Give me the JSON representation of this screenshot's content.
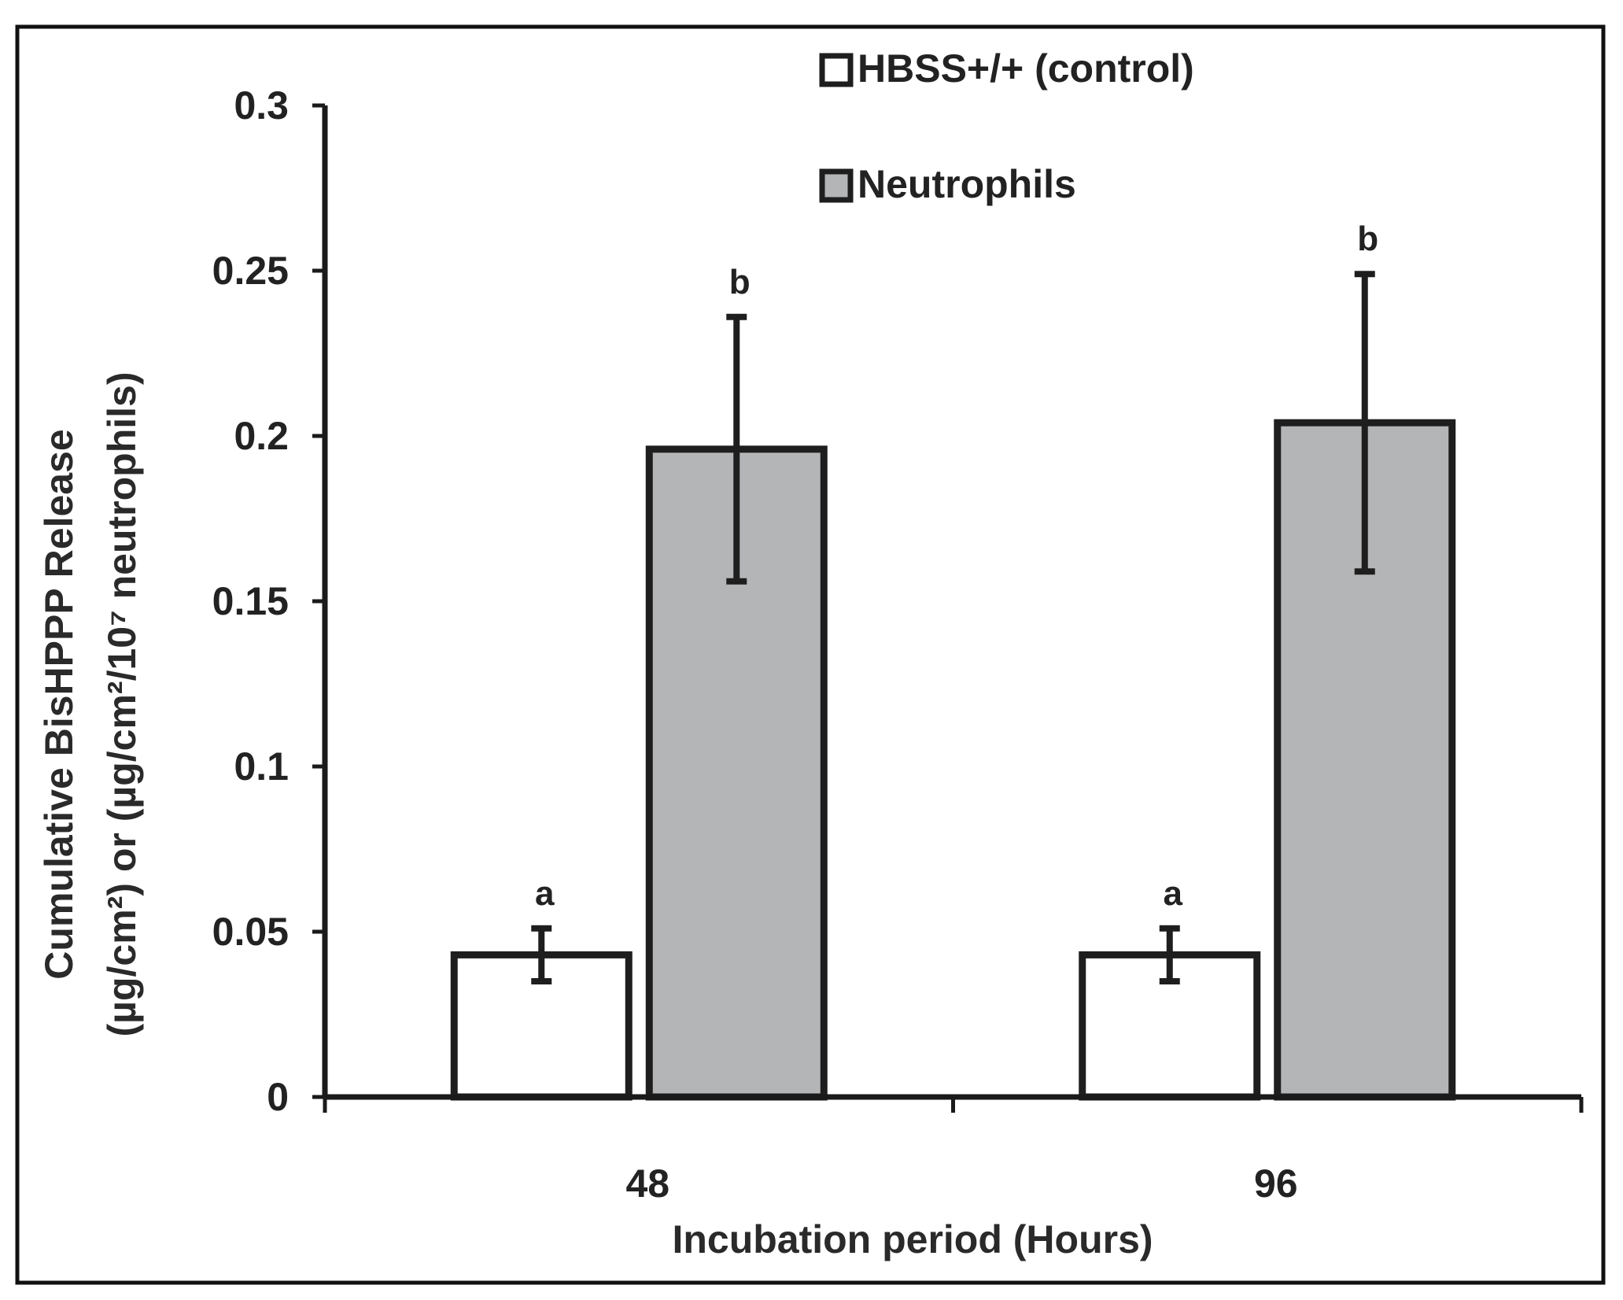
{
  "chart_data": {
    "type": "bar",
    "categories": [
      "48",
      "96"
    ],
    "series": [
      {
        "name": "HBSS+/+ (control)",
        "color": "#ffffff",
        "values": [
          0.043,
          0.043
        ],
        "errors": [
          0.008,
          0.008
        ],
        "labels": [
          "a",
          "a"
        ]
      },
      {
        "name": "Neutrophils",
        "color": "#b4b5b7",
        "values": [
          0.196,
          0.204
        ],
        "errors": [
          0.04,
          0.045
        ],
        "labels": [
          "b",
          "b"
        ]
      }
    ],
    "xlabel": "Incubation period (Hours)",
    "ylabel_line1": "Cumulative BisHPPP Release",
    "ylabel_line2": "(µg/cm²) or (µg/cm²/10⁷ neutrophils)",
    "ylim": [
      0,
      0.3
    ],
    "yticks": [
      0,
      0.05,
      0.1,
      0.15,
      0.2,
      0.25,
      0.3
    ],
    "ytick_labels": [
      "0",
      "0.05",
      "0.1",
      "0.15",
      "0.2",
      "0.25",
      "0.3"
    ],
    "grid": false,
    "legend_position": "top-center"
  }
}
